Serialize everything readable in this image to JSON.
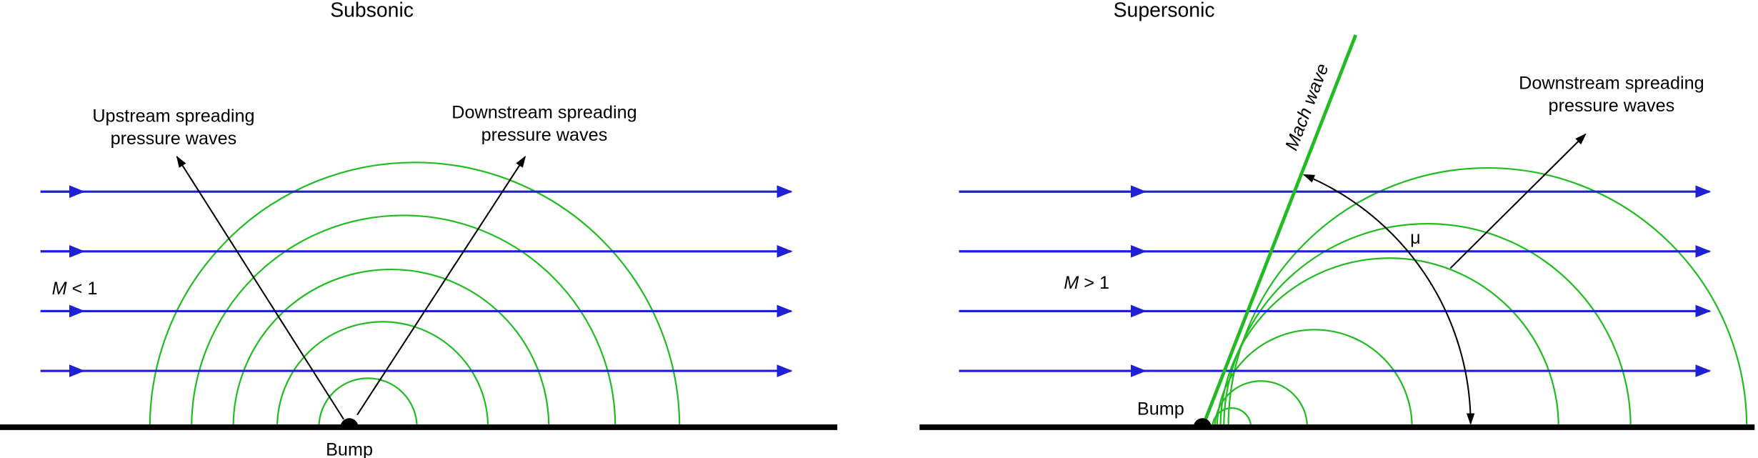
{
  "panels": [
    {
      "title": "Subsonic",
      "upstream_label": [
        "Upstream spreading",
        "pressure waves"
      ],
      "downstream_label": [
        "Downstream spreading",
        "pressure waves"
      ],
      "mach_symbol": "M",
      "mach_condition": "< 1",
      "bump_label": "Bump"
    },
    {
      "title": "Supersonic",
      "mach_wave_label": "Mach wave",
      "downstream_label": [
        "Downstream spreading",
        "pressure waves"
      ],
      "angle_label": "μ",
      "mach_symbol": "M",
      "mach_condition": "> 1",
      "bump_label": "Bump"
    }
  ]
}
